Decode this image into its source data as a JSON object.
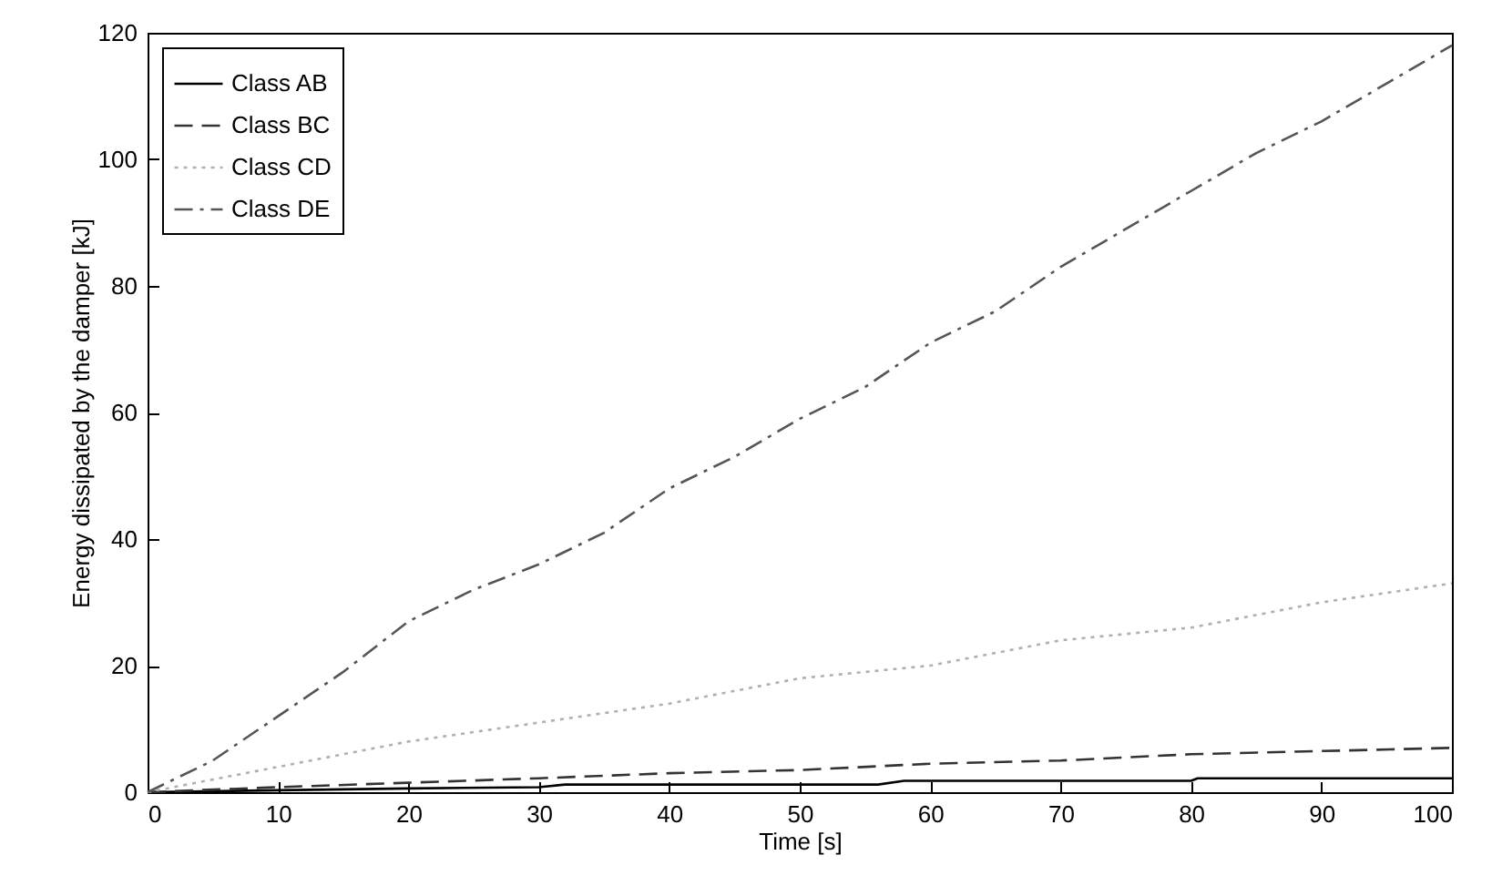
{
  "chart_data": {
    "type": "line",
    "xlabel": "Time [s]",
    "ylabel": "Energy dissipated by the damper [kJ]",
    "xlim": [
      0,
      100
    ],
    "ylim": [
      0,
      120
    ],
    "xticks": [
      0,
      10,
      20,
      30,
      40,
      50,
      60,
      70,
      80,
      90,
      100
    ],
    "yticks": [
      0,
      20,
      40,
      60,
      80,
      100,
      120
    ],
    "grid": false,
    "legend": "top left",
    "marker": "none",
    "series": [
      {
        "name": "Class AB",
        "color": "#000000",
        "line_style": "solid",
        "x": [
          0,
          10,
          20,
          30,
          32,
          56,
          58,
          80,
          80.5,
          100
        ],
        "values": [
          0,
          0.3,
          0.6,
          0.8,
          1.2,
          1.2,
          1.8,
          1.8,
          2.2,
          2.2
        ]
      },
      {
        "name": "Class BC",
        "color": "#333333",
        "line_style": "dashed",
        "x": [
          0,
          10,
          20,
          30,
          40,
          50,
          60,
          70,
          80,
          90,
          100
        ],
        "values": [
          0,
          0.8,
          1.5,
          2.2,
          3,
          3.5,
          4.5,
          5,
          6,
          6.5,
          7
        ]
      },
      {
        "name": "Class CD",
        "color": "#b0b0b0",
        "line_style": "dotted",
        "x": [
          0,
          10,
          20,
          30,
          40,
          50,
          60,
          70,
          80,
          90,
          100
        ],
        "values": [
          0,
          4,
          8,
          11,
          14,
          18,
          20,
          24,
          26,
          30,
          33
        ]
      },
      {
        "name": "Class DE",
        "color": "#555555",
        "line_style": "dashdot",
        "x": [
          0,
          5,
          10,
          15,
          20,
          25,
          30,
          35,
          40,
          45,
          50,
          55,
          60,
          65,
          70,
          75,
          80,
          85,
          90,
          95,
          100
        ],
        "values": [
          0,
          5,
          12,
          19,
          27,
          32,
          36,
          41,
          48,
          53,
          59,
          64,
          71,
          76,
          83,
          89,
          95,
          101,
          106,
          112,
          118
        ]
      }
    ]
  }
}
